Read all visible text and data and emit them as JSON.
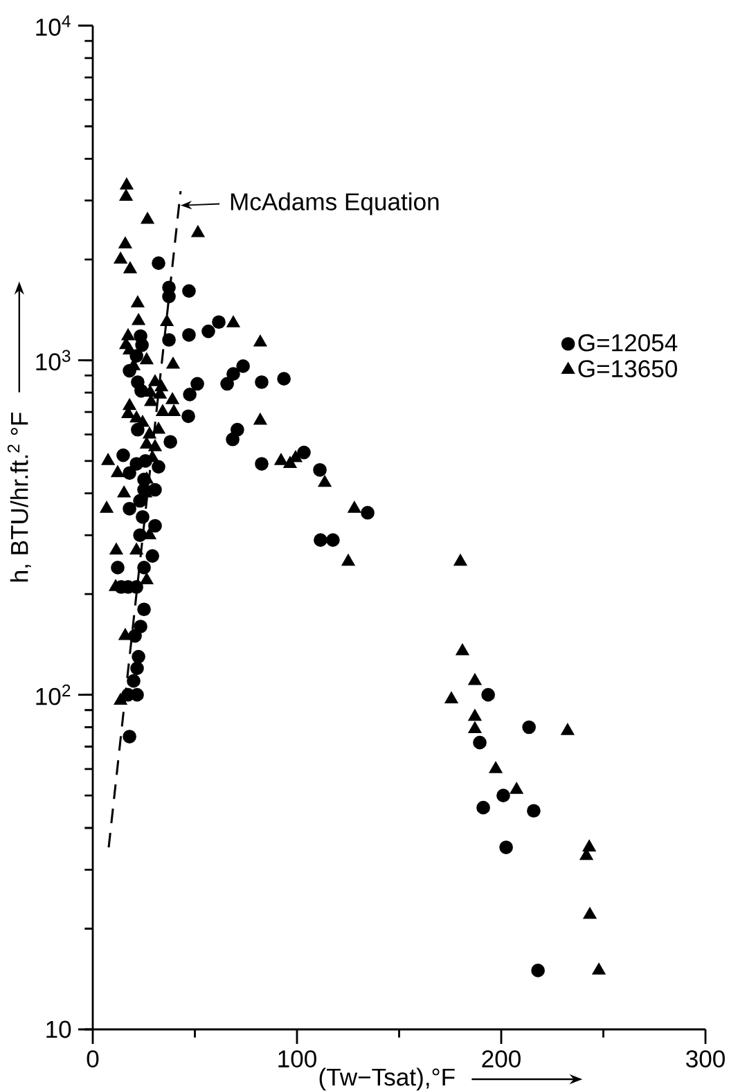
{
  "chart_data": {
    "type": "scatter",
    "xlabel": "(Tw−Tsat),°F",
    "ylabel": "h, BTU/hr.ft.$^{2}$ °F",
    "log": "y",
    "xlim": [
      0,
      300
    ],
    "ylim": [
      10,
      10000
    ],
    "xticks": [
      0,
      {
        "value": 50,
        "label": null
      },
      100,
      {
        "value": 150,
        "label": null
      },
      200,
      {
        "value": 250,
        "label": null
      },
      300
    ],
    "yticks": [
      10,
      {
        "value": 100,
        "label": "10$^{2}$"
      },
      {
        "value": 1000,
        "label": "10$^{3}$"
      },
      {
        "value": 10000,
        "label": "10$^{4}$"
      }
    ],
    "legend": "right",
    "annotations": [
      {
        "text": "McAdams Equation",
        "x": 43,
        "y": 2900
      }
    ],
    "series": [
      {
        "name": "G=12054",
        "marker": "circle",
        "color": "#000000",
        "x": [
          32.2,
          37.3,
          37.3,
          47.1,
          61.7,
          56.6,
          47.1,
          37.3,
          23.4,
          24.1,
          21.4,
          18.0,
          22.0,
          23.7,
          73.6,
          68.8,
          65.8,
          82.7,
          93.6,
          51.2,
          47.5,
          46.8,
          70.8,
          68.5,
          22.0,
          38.0,
          14.9,
          82.7,
          21.4,
          25.8,
          32.2,
          18.0,
          25.1,
          25.1,
          30.5,
          23.1,
          18.0,
          24.4,
          30.5,
          23.1,
          29.2,
          25.1,
          12.2,
          13.9,
          17.3,
          21.4,
          25.1,
          23.4,
          20.7,
          22.4,
          21.7,
          20.0,
          17.3,
          21.7,
          18.0,
          103.4,
          111.2,
          111.5,
          117.6,
          134.6,
          193.6,
          213.6,
          189.5,
          201.0,
          191.2,
          215.9,
          202.4,
          218.0
        ],
        "values": [
          1950,
          1650,
          1550,
          1610,
          1300,
          1220,
          1190,
          1150,
          1180,
          1110,
          1030,
          930,
          860,
          810,
          960,
          910,
          850,
          860,
          880,
          850,
          790,
          680,
          620,
          580,
          620,
          570,
          520,
          490,
          490,
          500,
          480,
          460,
          440,
          410,
          410,
          380,
          360,
          340,
          320,
          300,
          260,
          240,
          240,
          210,
          210,
          210,
          180,
          160,
          150,
          130,
          120,
          110,
          100,
          100,
          75,
          530,
          470,
          290,
          290,
          350,
          100,
          80,
          72,
          50,
          46,
          45,
          35,
          15
        ]
      },
      {
        "name": "G=13650",
        "marker": "triangle",
        "color": "#000000",
        "x": [
          16.6,
          16.3,
          26.8,
          51.5,
          15.9,
          13.6,
          18.3,
          22.0,
          22.4,
          36.3,
          68.8,
          82.0,
          17.3,
          16.3,
          18.0,
          26.4,
          39.3,
          20.0,
          30.5,
          33.6,
          32.9,
          28.1,
          28.5,
          39.0,
          34.2,
          39.7,
          18.0,
          17.3,
          21.4,
          24.4,
          82.0,
          32.2,
          27.8,
          26.4,
          30.5,
          29.2,
          7.5,
          92.2,
          96.6,
          99.3,
          12.2,
          26.4,
          15.3,
          25.8,
          6.8,
          27.8,
          11.5,
          21.4,
          26.4,
          11.2,
          15.9,
          13.6,
          113.6,
          128.1,
          125.1,
          180.0,
          181.0,
          187.1,
          175.6,
          187.1,
          187.1,
          197.3,
          207.5,
          232.5,
          243.1,
          241.7,
          243.4,
          247.8
        ],
        "values": [
          3330,
          3080,
          2630,
          2400,
          2220,
          2000,
          1870,
          1480,
          1310,
          1300,
          1290,
          1130,
          1180,
          1110,
          1070,
          1000,
          970,
          960,
          860,
          830,
          790,
          800,
          750,
          760,
          700,
          700,
          730,
          690,
          670,
          650,
          660,
          620,
          600,
          560,
          550,
          510,
          500,
          500,
          490,
          510,
          460,
          440,
          400,
          400,
          360,
          300,
          270,
          270,
          220,
          210,
          150,
          96,
          430,
          360,
          250,
          250,
          135,
          110,
          97,
          86,
          79,
          60,
          52,
          78,
          35,
          33,
          22,
          15
        ]
      },
      {
        "type": "line",
        "line_style": "dashed",
        "marker": "none",
        "color": "#000000",
        "x": [
          7.8,
          43
        ],
        "values": [
          35,
          3200
        ]
      }
    ]
  }
}
